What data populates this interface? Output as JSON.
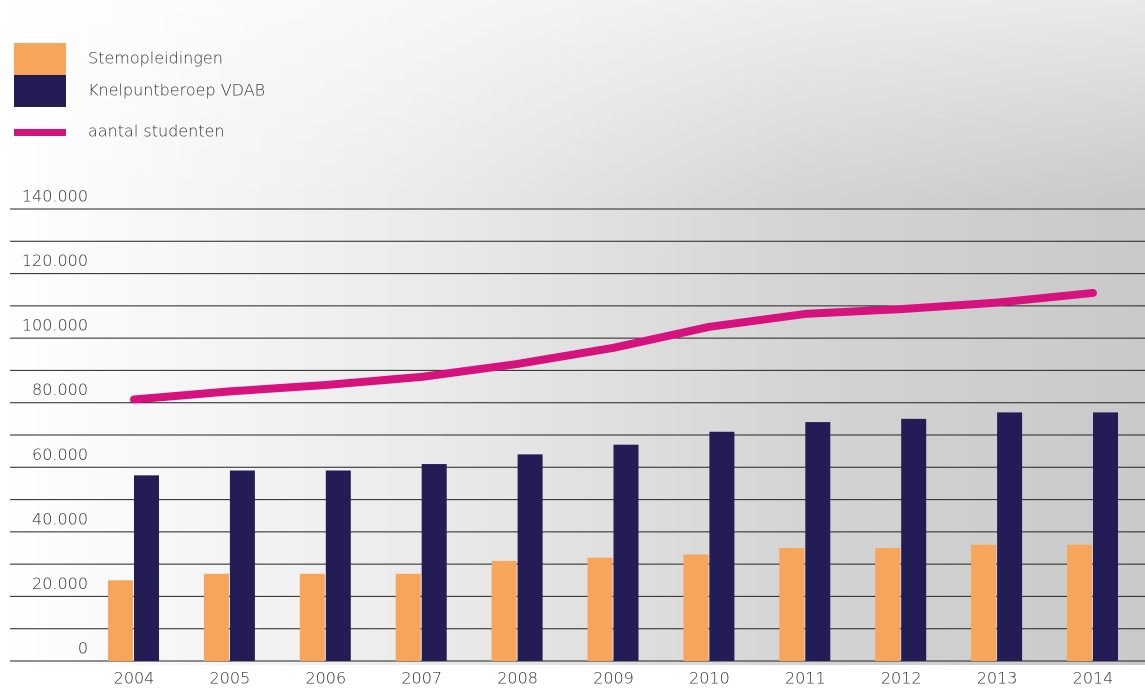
{
  "chart_data": {
    "type": "bar",
    "categories": [
      "2004",
      "2005",
      "2006",
      "2007",
      "2008",
      "2009",
      "2010",
      "2011",
      "2012",
      "2013",
      "2014"
    ],
    "series": [
      {
        "name": "Stemopleidingen",
        "color": "#f6a55a",
        "values": [
          25000,
          27000,
          27000,
          27000,
          31000,
          32000,
          33000,
          35000,
          35000,
          36000,
          36000
        ]
      },
      {
        "name": "Knelpuntberoep VDAB",
        "color": "#231c55",
        "values": [
          57500,
          59000,
          59000,
          61000,
          64000,
          67000,
          71000,
          74000,
          75000,
          77000,
          77000
        ]
      },
      {
        "name": "aantal studenten",
        "color": "#d6127f",
        "type": "line",
        "values": [
          81000,
          83500,
          85500,
          88000,
          92000,
          97000,
          103500,
          107500,
          109000,
          111000,
          114000
        ]
      }
    ],
    "ylim": [
      0,
      140000
    ],
    "yticks": [
      0,
      {
        "value": 20000,
        "label": "20.000"
      },
      {
        "value": 40000,
        "label": "40.000"
      },
      {
        "value": 60000,
        "label": "60.000"
      },
      {
        "value": 80000,
        "label": "80.000"
      },
      {
        "value": 100000,
        "label": "100.000"
      },
      {
        "value": 120000,
        "label": "120.000"
      },
      {
        "value": 140000,
        "label": "140.000"
      }
    ],
    "minor_yticks": [
      10000,
      30000,
      50000,
      70000,
      90000,
      110000,
      130000
    ],
    "grid": true
  }
}
